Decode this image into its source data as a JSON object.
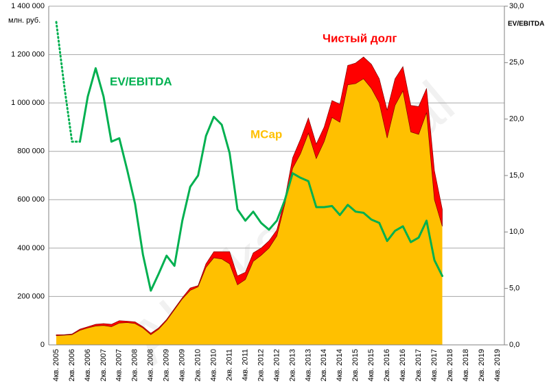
{
  "chart_data": {
    "type": "stacked_area_line",
    "y_label": "млн. руб.",
    "y2_label": "EV/EBITDA",
    "watermark": "Alenka.Capital",
    "categories": [
      "4кв. 2005",
      null,
      "2кв. 2006",
      null,
      "4кв. 2006",
      null,
      "2кв. 2007",
      null,
      "4кв. 2007",
      null,
      "2кв. 2008",
      null,
      "4кв. 2008",
      null,
      "2кв. 2009",
      null,
      "4кв. 2009",
      null,
      "2кв. 2010",
      null,
      "4кв. 2010",
      null,
      "2кв. 2011",
      null,
      "4кв. 2011",
      null,
      "2кв. 2012",
      null,
      "4кв. 2012",
      null,
      "2кв. 2013",
      null,
      "4кв. 2013",
      null,
      "2кв. 2014",
      null,
      "4кв. 2014",
      null,
      "2кв. 2015",
      null,
      "4кв. 2015",
      null,
      "2кв. 2016",
      null,
      "4кв. 2016",
      null,
      "2кв. 2017",
      null,
      "4кв. 2017",
      null,
      "2кв. 2018",
      null,
      "4кв. 2018",
      null,
      "2кв. 2019",
      null,
      "4кв. 2019"
    ],
    "series": [
      {
        "name": "MCap",
        "color": "#ffc000",
        "kind": "area",
        "values": [
          38000,
          40000,
          42000,
          60000,
          70000,
          78000,
          80000,
          75000,
          90000,
          92000,
          88000,
          70000,
          42000,
          65000,
          100000,
          145000,
          190000,
          225000,
          240000,
          320000,
          360000,
          355000,
          335000,
          248000,
          270000,
          345000,
          370000,
          400000,
          450000,
          580000,
          730000,
          790000,
          875000,
          770000,
          840000,
          940000,
          920000,
          1075000,
          1080000,
          1100000,
          1060000,
          1000000,
          855000,
          990000,
          1050000,
          880000,
          870000,
          960000,
          600000,
          490000,
          null,
          null,
          null,
          null,
          null,
          null,
          null
        ]
      },
      {
        "name": "Чистый долг",
        "color": "#ff0000",
        "kind": "area",
        "values": [
          4000,
          2000,
          3000,
          5000,
          5000,
          7000,
          8000,
          10000,
          10000,
          6000,
          7000,
          5000,
          6000,
          5000,
          5000,
          5000,
          5000,
          10000,
          5000,
          15000,
          25000,
          30000,
          50000,
          37000,
          30000,
          35000,
          30000,
          30000,
          25000,
          20000,
          43000,
          60000,
          63000,
          60000,
          60000,
          70000,
          75000,
          80000,
          85000,
          90000,
          100000,
          100000,
          115000,
          110000,
          100000,
          110000,
          115000,
          100000,
          120000,
          70000,
          null,
          null,
          null,
          null,
          null,
          null,
          null
        ]
      },
      {
        "name": "EV/EBITDA",
        "color": "#00b050",
        "kind": "line",
        "axis": "y2",
        "dotted_until": 3,
        "values": [
          28.6,
          23.0,
          18.0,
          18.0,
          22.0,
          24.5,
          22.0,
          18.0,
          18.3,
          15.5,
          12.5,
          8.0,
          4.8,
          6.3,
          7.9,
          7.0,
          11.0,
          14.0,
          15.0,
          18.5,
          20.2,
          19.5,
          17.0,
          12.0,
          11.0,
          11.8,
          10.8,
          10.2,
          11.0,
          12.8,
          15.2,
          14.8,
          14.5,
          12.2,
          12.2,
          12.3,
          11.5,
          12.4,
          11.8,
          11.7,
          11.1,
          10.8,
          9.2,
          10.1,
          10.5,
          9.1,
          9.5,
          11.0,
          7.5,
          6.1,
          null,
          null,
          null,
          null,
          null,
          null,
          null
        ]
      }
    ],
    "ylim": [
      0,
      1400000
    ],
    "yticks": [
      0,
      {
        "value": 200000,
        "label": "200 000"
      },
      {
        "value": 400000,
        "label": "400 000"
      },
      {
        "value": 600000,
        "label": "600 000"
      },
      {
        "value": 800000,
        "label": "800 000"
      },
      {
        "value": 1000000,
        "label": "1 000 000"
      },
      {
        "value": 1200000,
        "label": "1 200 000"
      },
      {
        "value": 1400000,
        "label": "1 400 000"
      }
    ],
    "y2lim": [
      0,
      30
    ],
    "y2ticks": [
      {
        "value": 0,
        "label": "0,0"
      },
      {
        "value": 5,
        "label": "5,0"
      },
      {
        "value": 10,
        "label": "10,0"
      },
      {
        "value": 15,
        "label": "15,0"
      },
      {
        "value": 20,
        "label": "20,0"
      },
      {
        "value": 25,
        "label": "25,0"
      },
      {
        "value": 30,
        "label": "30,0"
      }
    ],
    "grid": true
  }
}
